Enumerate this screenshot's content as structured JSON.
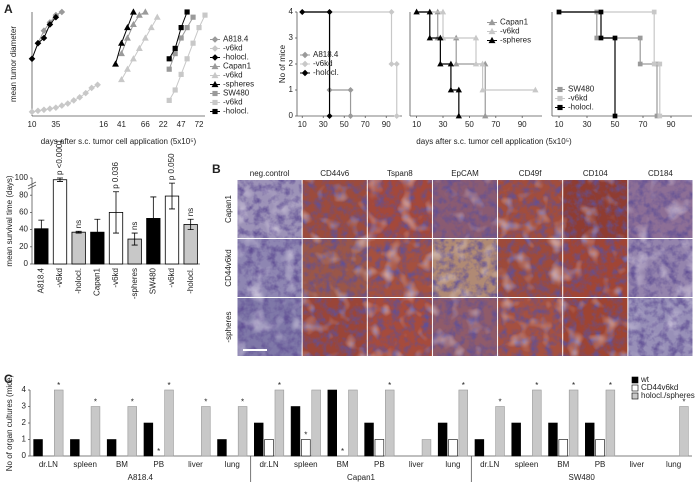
{
  "panel_labels": [
    "A",
    "B",
    "C"
  ],
  "histology": {
    "columns": [
      "neg.control",
      "CD44v6",
      "Tspan8",
      "EpCAM",
      "CD49f",
      "CD104",
      "CD184"
    ],
    "rows": [
      "Capan1",
      "CD44v6kd",
      "-spheres"
    ]
  },
  "chart_data": [
    {
      "type": "line",
      "y_label": "mean tumor diameter",
      "x_label": "days after s.c. tumor cell application (5x10⁵)",
      "ylim": [
        0,
        1
      ],
      "legend": "right",
      "categories": [
        "10",
        null,
        null,
        null,
        "35",
        null,
        null,
        null,
        null,
        null,
        null,
        null,
        "16",
        null,
        null,
        "41",
        null,
        null,
        null,
        "66",
        null,
        null,
        "22",
        null,
        null,
        "47",
        null,
        null,
        "72",
        null
      ],
      "series": [
        {
          "name": "A818.4",
          "color": "#9a9a9a",
          "marker": "diamond",
          "values": [
            null,
            0.7,
            0.82,
            0.9,
            0.97,
            1.0,
            null,
            null,
            null,
            null,
            null,
            null,
            null,
            null,
            null,
            null,
            null,
            null,
            null,
            null,
            null,
            null,
            null,
            null,
            null,
            null,
            null,
            null,
            null,
            null
          ]
        },
        {
          "name": "-v6kd",
          "color": "#c8c8c8",
          "marker": "diamond",
          "values": [
            0.04,
            0.05,
            0.06,
            0.07,
            0.08,
            0.1,
            0.12,
            0.15,
            0.18,
            0.22,
            0.27,
            0.3,
            null,
            null,
            null,
            null,
            null,
            null,
            null,
            null,
            null,
            null,
            null,
            null,
            null,
            null,
            null,
            null,
            null,
            null
          ]
        },
        {
          "name": "-holocl.",
          "color": "#000000",
          "marker": "diamond",
          "values": [
            0.55,
            0.7,
            0.75,
            0.88,
            0.95,
            null,
            null,
            null,
            null,
            null,
            null,
            null,
            null,
            null,
            null,
            null,
            null,
            null,
            null,
            null,
            null,
            null,
            null,
            null,
            null,
            null,
            null,
            null,
            null,
            null
          ]
        },
        {
          "name": "Capan1",
          "color": "#9a9a9a",
          "marker": "triangle",
          "values": [
            null,
            null,
            null,
            null,
            null,
            null,
            null,
            null,
            null,
            null,
            null,
            null,
            null,
            null,
            null,
            0.6,
            0.75,
            0.88,
            0.97,
            1.0,
            null,
            null,
            null,
            null,
            null,
            null,
            null,
            null,
            null,
            null
          ]
        },
        {
          "name": "-v6kd",
          "color": "#c8c8c8",
          "marker": "triangle",
          "values": [
            null,
            null,
            null,
            null,
            null,
            null,
            null,
            null,
            null,
            null,
            null,
            null,
            null,
            null,
            null,
            0.35,
            0.45,
            0.55,
            0.65,
            0.75,
            0.85,
            0.95,
            null,
            null,
            null,
            null,
            null,
            null,
            null,
            null
          ]
        },
        {
          "name": "-spheres",
          "color": "#000000",
          "marker": "triangle",
          "values": [
            null,
            null,
            null,
            null,
            null,
            null,
            null,
            null,
            null,
            null,
            null,
            null,
            null,
            null,
            0.5,
            0.7,
            0.85,
            1.0,
            null,
            null,
            null,
            null,
            null,
            null,
            null,
            null,
            null,
            null,
            null,
            null
          ]
        },
        {
          "name": "SW480",
          "color": "#9a9a9a",
          "marker": "square",
          "values": [
            null,
            null,
            null,
            null,
            null,
            null,
            null,
            null,
            null,
            null,
            null,
            null,
            null,
            null,
            null,
            null,
            null,
            null,
            null,
            null,
            null,
            null,
            null,
            0.45,
            0.6,
            0.75,
            0.85,
            0.95,
            null,
            null
          ]
        },
        {
          "name": "-v6kd",
          "color": "#c8c8c8",
          "marker": "square",
          "values": [
            null,
            null,
            null,
            null,
            null,
            null,
            null,
            null,
            null,
            null,
            null,
            null,
            null,
            null,
            null,
            null,
            null,
            null,
            null,
            null,
            null,
            null,
            null,
            0.15,
            0.25,
            0.4,
            0.55,
            0.7,
            0.85,
            0.97
          ]
        },
        {
          "name": "-holocl.",
          "color": "#000000",
          "marker": "square",
          "values": [
            null,
            null,
            null,
            null,
            null,
            null,
            null,
            null,
            null,
            null,
            null,
            null,
            null,
            null,
            null,
            null,
            null,
            null,
            null,
            null,
            null,
            null,
            null,
            0.55,
            0.65,
            0.85,
            1.0,
            null,
            null,
            null
          ]
        }
      ]
    },
    {
      "type": "step",
      "y_label": "No of mice",
      "xlim": [
        5,
        105
      ],
      "xticks": [
        10,
        30,
        50,
        70,
        90
      ],
      "ylim": [
        0,
        4
      ],
      "yticks": [
        0,
        1,
        2,
        3,
        4
      ],
      "legend": "center left",
      "series": [
        {
          "name": "A818.4",
          "color": "#9a9a9a",
          "marker": "diamond",
          "x": [
            10,
            36,
            36,
            56,
            56
          ],
          "values": [
            4,
            4,
            1,
            1,
            0
          ]
        },
        {
          "name": "-v6kd",
          "color": "#c8c8c8",
          "marker": "diamond",
          "x": [
            10,
            95,
            95,
            100,
            100
          ],
          "values": [
            4,
            4,
            2,
            2,
            0
          ]
        },
        {
          "name": "-holocl.",
          "color": "#000000",
          "marker": "diamond",
          "x": [
            10,
            36,
            36
          ],
          "values": [
            4,
            4,
            0
          ]
        }
      ]
    },
    {
      "type": "step",
      "x_label": "days after s.c. tumor cell application (5x10⁵)",
      "xlim": [
        5,
        105
      ],
      "xticks": [
        10,
        30,
        50,
        70,
        90
      ],
      "ylim": [
        0,
        4
      ],
      "legend": "upper right",
      "series": [
        {
          "name": "Capan1",
          "color": "#9a9a9a",
          "marker": "triangle",
          "x": [
            10,
            26,
            26,
            40,
            40,
            62,
            62
          ],
          "values": [
            4,
            4,
            3,
            3,
            2,
            2,
            0
          ]
        },
        {
          "name": "-v6kd",
          "color": "#c8c8c8",
          "marker": "triangle",
          "x": [
            10,
            30,
            30,
            55,
            55,
            60,
            60,
            100
          ],
          "values": [
            4,
            4,
            3,
            3,
            2,
            2,
            1,
            1
          ]
        },
        {
          "name": "-spheres",
          "color": "#000000",
          "marker": "triangle",
          "x": [
            10,
            20,
            20,
            28,
            28,
            36,
            36,
            42,
            42
          ],
          "values": [
            4,
            4,
            3,
            3,
            2,
            2,
            1,
            1,
            0
          ]
        }
      ]
    },
    {
      "type": "step",
      "xlim": [
        5,
        105
      ],
      "xticks": [
        10,
        30,
        50,
        70,
        90
      ],
      "ylim": [
        0,
        4
      ],
      "legend": "lower left",
      "series": [
        {
          "name": "SW480",
          "color": "#9a9a9a",
          "marker": "square",
          "x": [
            10,
            37,
            37,
            68,
            68,
            80,
            80
          ],
          "values": [
            4,
            4,
            3,
            3,
            2,
            2,
            0
          ]
        },
        {
          "name": "-v6kd",
          "color": "#c8c8c8",
          "marker": "square",
          "x": [
            10,
            78,
            78,
            82,
            82
          ],
          "values": [
            4,
            4,
            2,
            2,
            0
          ]
        },
        {
          "name": "-holocl.",
          "color": "#000000",
          "marker": "square",
          "x": [
            10,
            40,
            40,
            50,
            50
          ],
          "values": [
            4,
            4,
            3,
            3,
            0
          ]
        }
      ]
    },
    {
      "type": "bar",
      "y_label": "mean survival time (days)",
      "ylim": [
        0,
        100
      ],
      "yticks": [
        0,
        20,
        40,
        60,
        80,
        100
      ],
      "categories": [
        "A818.4",
        "-v6kd",
        "-holocl.",
        "Capan1",
        "-v6kd",
        "-spheres",
        "SW480",
        "-v6kd",
        "-holocl."
      ],
      "values": [
        41,
        98,
        37,
        37,
        60,
        29,
        53,
        79,
        46
      ],
      "errors": [
        10,
        2,
        1,
        15,
        24,
        7,
        25,
        15,
        6
      ],
      "colors": [
        "#000000",
        "#ffffff",
        "#c8c8c8",
        "#000000",
        "#ffffff",
        "#c8c8c8",
        "#000000",
        "#ffffff",
        "#c8c8c8"
      ],
      "annotations": [
        null,
        "p <0.0001",
        "ns",
        null,
        "p 0.036",
        "ns",
        null,
        "p 0.050",
        "ns"
      ]
    },
    {
      "type": "grouped-bar",
      "y_label": "No of organ cultures (mice)",
      "ylim": [
        0,
        4
      ],
      "yticks": [
        0,
        1,
        2,
        3,
        4
      ],
      "legend": "upper right",
      "categories": [
        "dr.LN",
        "spleen",
        "BM",
        "PB",
        "liver",
        "lung",
        "dr.LN",
        "spleen",
        "BM",
        "PB",
        "liver",
        "lung",
        "dr.LN",
        "spleen",
        "BM",
        "PB",
        "liver",
        "lung"
      ],
      "groups": [
        "A818.4",
        "Capan1",
        "SW480"
      ],
      "series": [
        {
          "name": "wt",
          "color": "#000000",
          "values": [
            1,
            1,
            1,
            2,
            0,
            1,
            2,
            3,
            4,
            2,
            0,
            2,
            1,
            2,
            2,
            2,
            0,
            0
          ]
        },
        {
          "name": "CD44v6kd",
          "color": "#ffffff",
          "values": [
            0,
            0,
            0,
            0,
            0,
            0,
            1,
            1,
            0,
            1,
            0,
            1,
            0,
            0,
            1,
            1,
            0,
            0
          ],
          "annotations": [
            null,
            null,
            null,
            "*",
            null,
            null,
            null,
            "*",
            "*",
            null,
            null,
            null,
            null,
            null,
            null,
            null,
            null,
            null
          ]
        },
        {
          "name": "holocl./spheres",
          "color": "#c8c8c8",
          "values": [
            4,
            3,
            3,
            4,
            3,
            3,
            4,
            4,
            4,
            4,
            1,
            4,
            3,
            4,
            4,
            4,
            0,
            3
          ],
          "annotations": [
            "*",
            "*",
            "*",
            "*",
            "*",
            "*",
            "*",
            null,
            null,
            "*",
            null,
            "*",
            "*",
            "*",
            "*",
            "*",
            null,
            "*"
          ]
        }
      ]
    }
  ]
}
